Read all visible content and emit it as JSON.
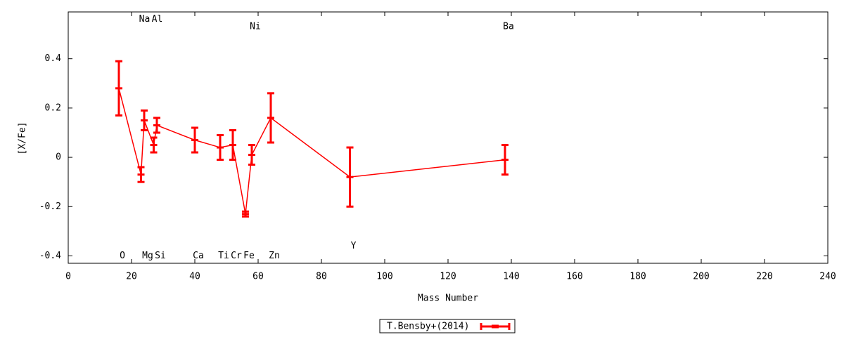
{
  "chart_data": {
    "type": "errorbar-line",
    "x_label": "Mass Number",
    "y_label": "[X/Fe]",
    "xlim": [
      0,
      240
    ],
    "xticks": [
      0,
      20,
      40,
      60,
      80,
      100,
      120,
      140,
      160,
      180,
      200,
      220,
      240
    ],
    "ylim": [
      -0.43,
      0.59
    ],
    "yticks": [
      -0.4,
      -0.2,
      0,
      0.2,
      0.4
    ],
    "series": [
      {
        "name": "T.Bensby+(2014)",
        "color": "#ff0000",
        "x": [
          16,
          23,
          24,
          27,
          28,
          40,
          48,
          52,
          56,
          58,
          64,
          89,
          138
        ],
        "values": [
          0.28,
          -0.07,
          0.15,
          0.05,
          0.13,
          0.07,
          0.04,
          0.05,
          -0.23,
          0.01,
          0.16,
          -0.08,
          -0.01
        ],
        "errors": [
          0.11,
          0.03,
          0.04,
          0.03,
          0.03,
          0.05,
          0.05,
          0.06,
          0.01,
          0.04,
          0.1,
          0.12,
          0.06
        ]
      }
    ],
    "annotations": [
      {
        "text": "O",
        "x": 16,
        "y": -0.4
      },
      {
        "text": "Na",
        "x": 23,
        "y": 0.56
      },
      {
        "text": "Mg",
        "x": 24,
        "y": -0.4
      },
      {
        "text": "Al",
        "x": 27,
        "y": 0.56
      },
      {
        "text": "Si",
        "x": 28,
        "y": -0.4
      },
      {
        "text": "Ca",
        "x": 40,
        "y": -0.4
      },
      {
        "text": "Ti",
        "x": 48,
        "y": -0.4
      },
      {
        "text": "Cr",
        "x": 52,
        "y": -0.4
      },
      {
        "text": "Fe",
        "x": 56,
        "y": -0.4
      },
      {
        "text": "Ni",
        "x": 58,
        "y": 0.53
      },
      {
        "text": "Zn",
        "x": 64,
        "y": -0.4
      },
      {
        "text": "Y",
        "x": 89,
        "y": -0.36
      },
      {
        "text": "Ba",
        "x": 138,
        "y": 0.53
      }
    ]
  }
}
